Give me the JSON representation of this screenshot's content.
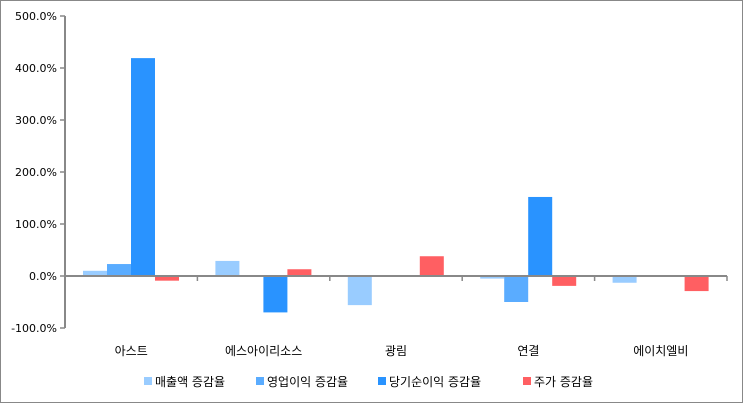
{
  "chart_data": {
    "type": "bar",
    "title": "",
    "xlabel": "",
    "ylabel": "",
    "categories": [
      "아스트",
      "에스아이리소스",
      "광림",
      "연결",
      "에이치엘비"
    ],
    "series": [
      {
        "name": "매출액 증감율",
        "color": "#99ccff",
        "values": [
          10,
          29,
          -56,
          -5,
          -13
        ]
      },
      {
        "name": "영업이익 증감율",
        "color": "#5aacff",
        "values": [
          23,
          null,
          null,
          -50,
          null
        ]
      },
      {
        "name": "당기순이익 증감율",
        "color": "#2993ff",
        "values": [
          419,
          -70,
          null,
          152,
          null
        ]
      },
      {
        "name": "주가 증감율",
        "color": "#ff5f62",
        "values": [
          -9,
          13,
          38,
          -19,
          -29
        ]
      }
    ],
    "ylim": [
      -100,
      500
    ],
    "yticks": [
      -100,
      0,
      100,
      200,
      300,
      400,
      500
    ],
    "ytick_labels": [
      "-100.0%",
      "0.0%",
      "100.0%",
      "200.0%",
      "300.0%",
      "400.0%",
      "500.0%"
    ],
    "grid": false,
    "legend": "bottom"
  }
}
